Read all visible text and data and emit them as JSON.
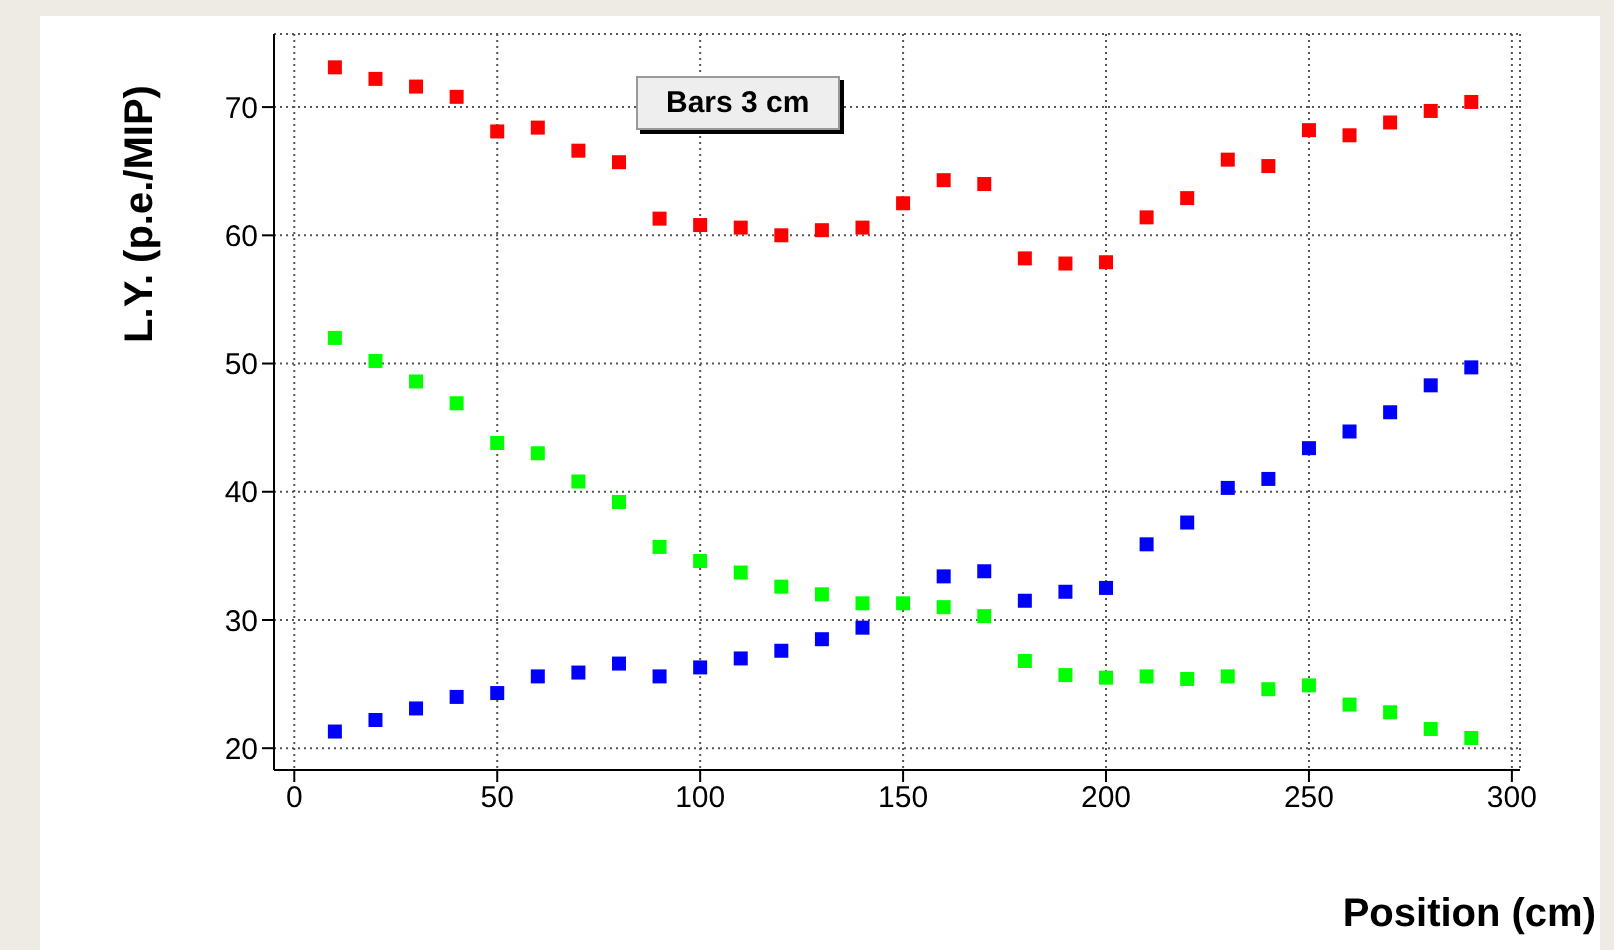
{
  "chart_data": {
    "type": "scatter",
    "xlabel": "Position (cm)",
    "ylabel": "L.Y. (p.e./MIP)",
    "annotations": [
      "Bars 3 cm"
    ],
    "x": [
      10,
      20,
      30,
      40,
      50,
      60,
      70,
      80,
      90,
      100,
      110,
      120,
      130,
      140,
      150,
      160,
      170,
      180,
      190,
      200,
      210,
      220,
      230,
      240,
      250,
      260,
      270,
      280,
      290
    ],
    "series": [
      {
        "color": "#ff0000",
        "values": [
          73.1,
          72.2,
          71.6,
          70.8,
          68.1,
          68.4,
          66.6,
          65.7,
          61.3,
          60.8,
          60.6,
          60.0,
          60.4,
          60.6,
          62.5,
          64.3,
          64.0,
          58.2,
          57.8,
          57.9,
          61.4,
          62.9,
          65.9,
          65.4,
          68.2,
          67.8,
          68.8,
          69.7,
          70.4
        ]
      },
      {
        "color": "#00ff00",
        "values": [
          52.0,
          50.2,
          48.6,
          46.9,
          43.8,
          43.0,
          40.8,
          39.2,
          35.7,
          34.6,
          33.7,
          32.6,
          32.0,
          31.3,
          31.3,
          31.0,
          30.3,
          26.8,
          25.7,
          25.5,
          25.6,
          25.4,
          25.6,
          24.6,
          24.9,
          23.4,
          22.8,
          21.5,
          20.8
        ]
      },
      {
        "color": "#0000ff",
        "values": [
          21.3,
          22.2,
          23.1,
          24.0,
          24.3,
          25.6,
          25.9,
          26.6,
          25.6,
          26.3,
          27.0,
          27.6,
          28.5,
          29.4,
          null,
          33.4,
          33.8,
          31.5,
          32.2,
          32.5,
          35.9,
          37.6,
          40.3,
          41.0,
          43.4,
          44.7,
          46.2,
          48.3,
          49.7
        ]
      }
    ],
    "xlim": [
      -5,
      302
    ],
    "xticks": [
      0,
      50,
      100,
      150,
      200,
      250,
      300
    ],
    "ylim": [
      18.3,
      75.7
    ],
    "yticks": [
      20,
      30,
      40,
      50,
      60,
      70
    ],
    "grid": true,
    "marker": "square"
  }
}
